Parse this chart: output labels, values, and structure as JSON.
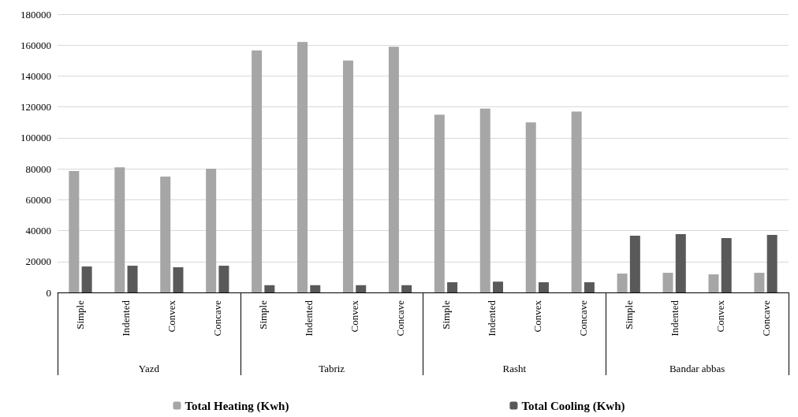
{
  "chart_data": {
    "type": "bar",
    "categories": [
      "Simple",
      "Indented",
      "Convex",
      "Concave",
      "Simple",
      "Indented",
      "Convex",
      "Concave",
      "Simple",
      "Indented",
      "Convex",
      "Concave",
      "Simple",
      "Indented",
      "Convex",
      "Concave"
    ],
    "annotations": [
      "Yazd",
      "Tabriz",
      "Rasht",
      "Bandar abbas"
    ],
    "series": [
      {
        "name": "Total Heating (Kwh)",
        "color": "#a6a6a6",
        "values": [
          78500,
          81000,
          75000,
          80000,
          156500,
          162000,
          150000,
          159000,
          115000,
          119000,
          110000,
          117000,
          12200,
          12700,
          11700,
          12700
        ]
      },
      {
        "name": "Total Cooling (Kwh)",
        "color": "#595959",
        "values": [
          16800,
          17300,
          16300,
          17300,
          4700,
          4700,
          4700,
          4700,
          6600,
          7000,
          6600,
          6600,
          36700,
          37700,
          35200,
          37200
        ]
      }
    ],
    "ylim": [
      0,
      180000
    ],
    "yticks": [
      0,
      20000,
      40000,
      60000,
      80000,
      100000,
      120000,
      140000,
      160000,
      180000
    ],
    "grid": "y",
    "legend": "bottom"
  }
}
